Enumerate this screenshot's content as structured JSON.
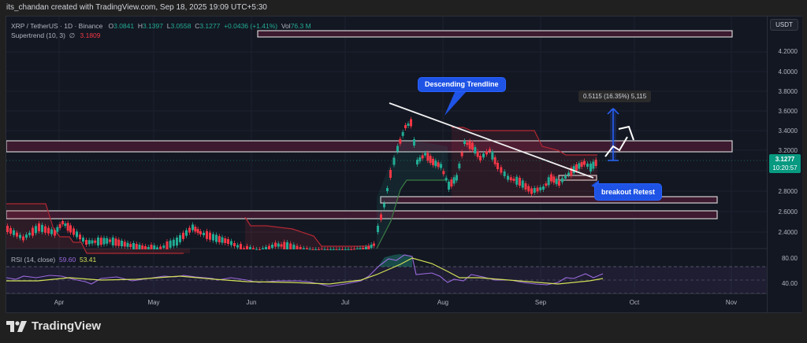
{
  "credit": "its_chandan created with TradingView.com, Sep 18, 2025 19:09 UTC+5:30",
  "symbol": {
    "pair": "XRP / TetherUS · 1D · Binance",
    "open_label": "O",
    "open": "3.0841",
    "high_label": "H",
    "high": "3.1397",
    "low_label": "L",
    "low": "3.0558",
    "close_label": "C",
    "close": "3.1277",
    "change": "+0.0436 (+1.41%)",
    "vol_label": "Vol",
    "vol": "76.3 M"
  },
  "supertrend": {
    "label": "Supertrend (10, 3)",
    "symbol": "∅",
    "value": "3.1809"
  },
  "rsi": {
    "label": "RSI (14, close)",
    "value": "59.60",
    "ma_value": "53.41"
  },
  "axis": {
    "currency": "USDT",
    "ticks": [
      "4.2000",
      "4.0000",
      "3.8000",
      "3.6000",
      "3.4000",
      "3.2000",
      "2.8000",
      "2.6000",
      "2.4000"
    ],
    "rsi_ticks": [
      "80.00",
      "40.00"
    ],
    "last_price": "3.1277",
    "countdown": "10:20:57"
  },
  "xaxis": {
    "labels": [
      "Apr",
      "May",
      "Jun",
      "Jul",
      "Aug",
      "Sep",
      "Oct",
      "Nov"
    ]
  },
  "annotations": {
    "trendline_label": "Descending Trendline",
    "retest_label": "breakout Retest",
    "measure_label": "0.5115 (16.35%) 5,115"
  },
  "brand": "TradingView",
  "colors": {
    "up": "#22ab94",
    "down": "#f23645",
    "rsi": "#9c6ade",
    "rsi_ma": "#d4e157",
    "zone": "#4a1e38",
    "callout": "#1e53e5"
  },
  "chart_data": {
    "type": "candlestick",
    "title": "XRP / TetherUS · 1D · Binance",
    "xlabel": "",
    "ylabel": "USDT",
    "ylim": [
      2.3,
      4.4
    ],
    "x_ticks": [
      "Apr",
      "May",
      "Jun",
      "Jul",
      "Aug",
      "Sep",
      "Oct",
      "Nov"
    ],
    "y_ticks": [
      2.4,
      2.6,
      2.8,
      3.0,
      3.2,
      3.4,
      3.6,
      3.8,
      4.0,
      4.2
    ],
    "last": {
      "open": 3.0841,
      "high": 3.1397,
      "low": 3.0558,
      "close": 3.1277,
      "change": 0.0436,
      "change_pct": 1.41,
      "volume": "76.3M"
    },
    "approx_closes": [
      {
        "x": "Apr",
        "v": 2.1
      },
      {
        "x": "May",
        "v": 2.2
      },
      {
        "x": "mid-May",
        "v": 2.45
      },
      {
        "x": "Jun",
        "v": 2.2
      },
      {
        "x": "Jul",
        "v": 2.3
      },
      {
        "x": "mid-Jul",
        "v": 3.4
      },
      {
        "x": "Jul peak",
        "v": 3.6
      },
      {
        "x": "Aug",
        "v": 3.0
      },
      {
        "x": "mid-Aug",
        "v": 3.2
      },
      {
        "x": "late-Aug",
        "v": 2.85
      },
      {
        "x": "Sep",
        "v": 2.8
      },
      {
        "x": "Sep 18",
        "v": 3.1277
      }
    ],
    "indicators": {
      "supertrend": {
        "params": [
          10,
          3
        ],
        "value": 3.1809
      },
      "rsi": {
        "period": 14,
        "value": 59.6,
        "ma": 53.41,
        "levels": [
          70,
          50,
          30
        ]
      }
    },
    "zones": [
      {
        "top": 4.36,
        "bottom": 4.33
      },
      {
        "top": 3.3,
        "bottom": 3.22
      },
      {
        "top": 2.73,
        "bottom": 2.68
      },
      {
        "top": 2.58,
        "bottom": 2.53
      }
    ],
    "annotations": [
      "Descending Trendline",
      "breakout Retest",
      "0.5115 (16.35%) 5,115"
    ]
  }
}
